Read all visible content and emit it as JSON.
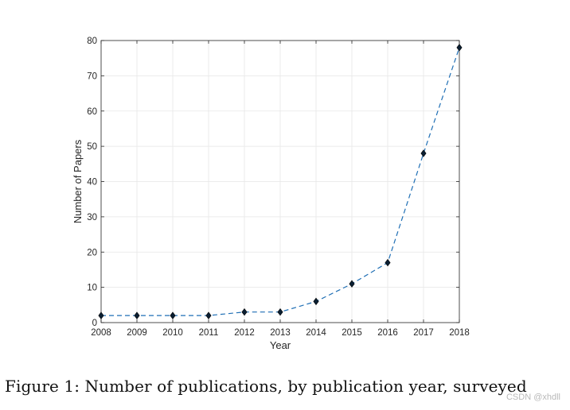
{
  "chart_data": {
    "type": "line",
    "title": "",
    "xlabel": "Year",
    "ylabel": "Number of Papers",
    "x": [
      2008,
      2009,
      2010,
      2011,
      2012,
      2013,
      2014,
      2015,
      2016,
      2017,
      2018
    ],
    "series": [
      {
        "name": "Papers",
        "values": [
          2,
          2,
          2,
          2,
          3,
          3,
          6,
          11,
          17,
          48,
          78
        ],
        "line_style": "dashed",
        "marker": "diamond",
        "line_color": "#1f6fb5",
        "marker_color": "#0a1f33"
      }
    ],
    "xlim": [
      2008,
      2018
    ],
    "ylim": [
      0,
      80
    ],
    "yticks": [
      0,
      10,
      20,
      30,
      40,
      50,
      60,
      70,
      80
    ],
    "grid": true,
    "legend": "none"
  },
  "caption": {
    "text": "Figure 1: Number of publications, by publication year, surveyed"
  },
  "watermark": {
    "text": "CSDN @xhdll"
  }
}
